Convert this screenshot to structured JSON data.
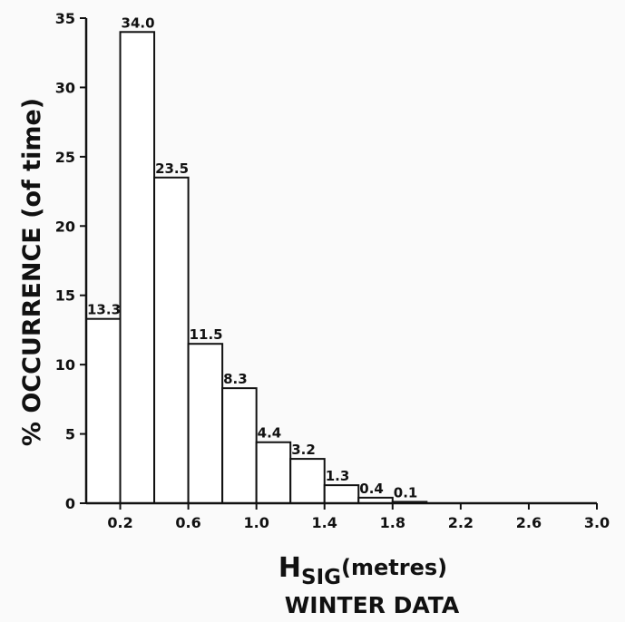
{
  "chart_data": {
    "type": "bar",
    "title": "WINTER DATA",
    "xlabel_main": "H",
    "xlabel_sub": "SIG",
    "xlabel_units": "(metres)",
    "ylabel": "% OCCURRENCE (of time)",
    "bin_edges": [
      0.0,
      0.2,
      0.4,
      0.6,
      0.8,
      1.0,
      1.2,
      1.4,
      1.6,
      1.8,
      2.0
    ],
    "values": [
      13.3,
      34.0,
      23.5,
      11.5,
      8.3,
      4.4,
      3.2,
      1.3,
      0.4,
      0.1
    ],
    "value_labels": [
      "13.3",
      "34.0",
      "23.5",
      "11.5",
      "8.3",
      "4.4",
      "3.2",
      "1.3",
      "0.4",
      "0.1"
    ],
    "xlim": [
      0.0,
      3.0
    ],
    "ylim": [
      0,
      35
    ],
    "xticks": [
      0.2,
      0.6,
      1.0,
      1.4,
      1.8,
      2.2,
      2.6,
      3.0
    ],
    "xtick_labels": [
      "0.2",
      "0.6",
      "1.0",
      "1.4",
      "1.8",
      "2.2",
      "2.6",
      "3.0"
    ],
    "yticks": [
      0,
      5,
      10,
      15,
      20,
      25,
      30,
      35
    ],
    "ytick_labels": [
      "0",
      "5",
      "10",
      "15",
      "20",
      "25",
      "30",
      "35"
    ],
    "grid": false,
    "legend": "none"
  }
}
